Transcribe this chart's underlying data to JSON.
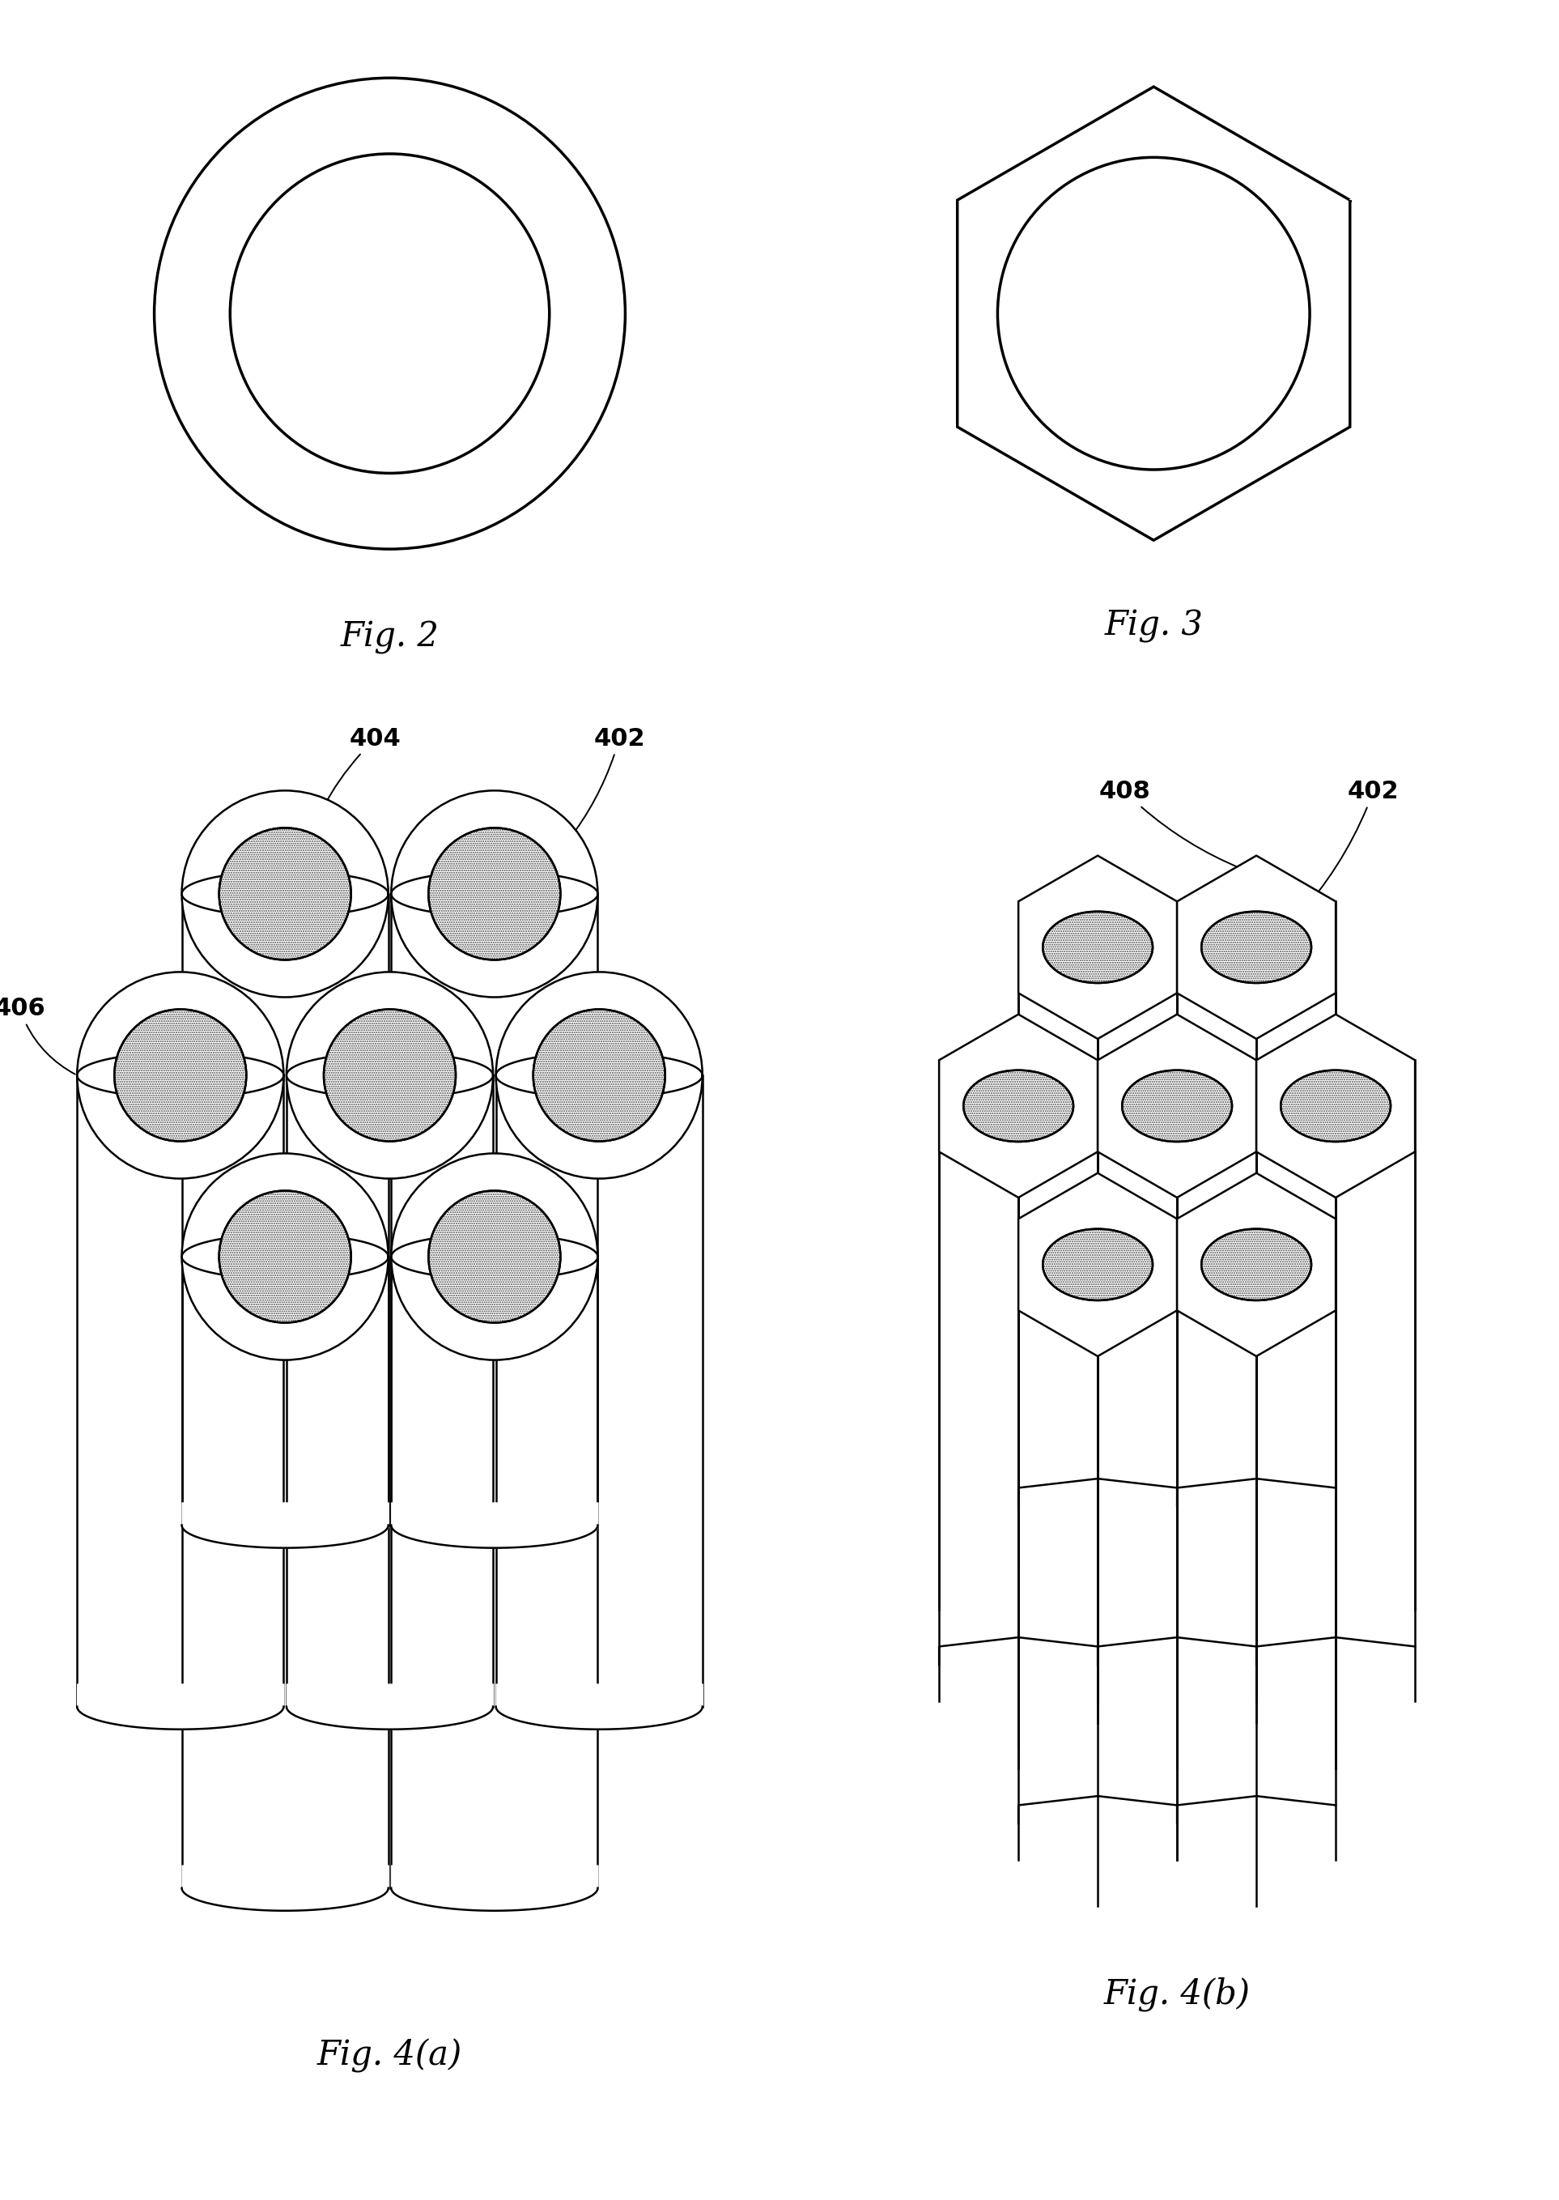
{
  "bg_color": "#ffffff",
  "line_color": "#000000",
  "lw": 1.8,
  "lw_thick": 2.5,
  "fig_width": 19.26,
  "fig_height": 27.17,
  "fig2_label": "Fig. 2",
  "fig3_label": "Fig. 3",
  "fig4a_label": "Fig. 4(a)",
  "fig4b_label": "Fig. 4(b)",
  "label_404": "404",
  "label_402a": "402",
  "label_406": "406",
  "label_408": "408",
  "label_402b": "402",
  "annot_fontsize": 22,
  "fig_label_fontsize": 30,
  "gray_fill": "#d8d8d8",
  "light_gray": "#f0f0f0"
}
